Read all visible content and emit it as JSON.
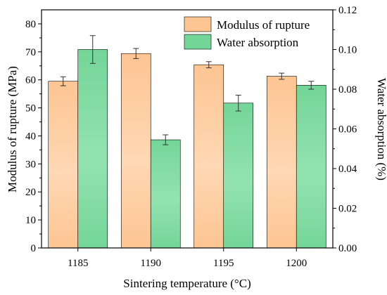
{
  "chart_data": {
    "type": "bar",
    "categories": [
      "1185",
      "1190",
      "1195",
      "1200"
    ],
    "xlabel": "Sintering temperature (°C)",
    "ylabel_left": "Modulus of rupture (MPa)",
    "ylabel_right": "Water absorption (%)",
    "ylim_left": [
      0,
      85
    ],
    "ylim_right": [
      0,
      0.12
    ],
    "yticks_left": [
      "0",
      "10",
      "20",
      "30",
      "40",
      "50",
      "60",
      "70",
      "80"
    ],
    "yticks_right": [
      "0.00",
      "0.02",
      "0.04",
      "0.06",
      "0.08",
      "0.10",
      "0.12"
    ],
    "legend_position": "top-right",
    "grid": false,
    "series": [
      {
        "name": "Modulus of rupture",
        "axis": "left",
        "color": "#FDC592",
        "values": [
          59.5,
          69.4,
          65.4,
          61.3
        ],
        "errors": [
          1.6,
          1.8,
          1.1,
          1.1
        ]
      },
      {
        "name": "Water absorption",
        "axis": "right",
        "color": "#74D598",
        "values": [
          0.1,
          0.0545,
          0.073,
          0.082
        ],
        "errors": [
          0.007,
          0.0025,
          0.004,
          0.002
        ]
      }
    ]
  }
}
